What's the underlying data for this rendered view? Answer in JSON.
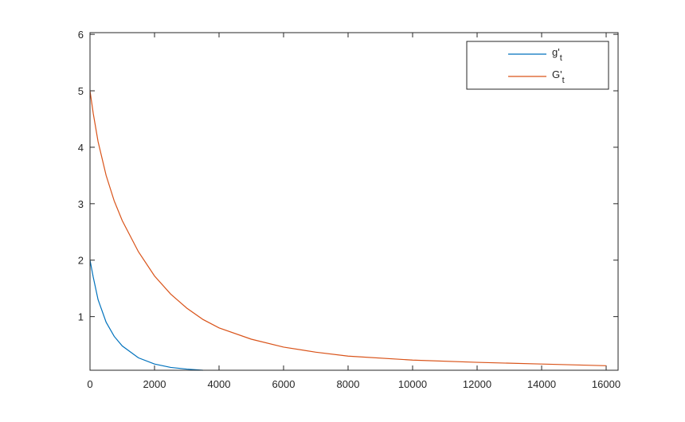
{
  "chart_data": {
    "type": "line",
    "x": [
      0,
      100,
      250,
      500,
      750,
      1000,
      1500,
      2000,
      2500,
      3000,
      3500,
      4000,
      5000,
      6000,
      7000,
      8000,
      10000,
      12000,
      14000,
      16000
    ],
    "series": [
      {
        "name": "g't",
        "color": "#0072bd",
        "values": [
          2.0,
          1.7,
          1.3,
          0.9,
          0.65,
          0.48,
          0.27,
          0.16,
          0.1,
          0.07,
          0.05,
          null,
          null,
          null,
          null,
          null,
          null,
          null,
          null,
          null
        ]
      },
      {
        "name": "G't",
        "color": "#d95319",
        "values": [
          5.0,
          4.6,
          4.1,
          3.5,
          3.05,
          2.7,
          2.15,
          1.72,
          1.4,
          1.15,
          0.95,
          0.8,
          0.6,
          0.46,
          0.37,
          0.3,
          0.23,
          0.19,
          0.16,
          0.13
        ]
      }
    ],
    "xlim": [
      0,
      16370
    ],
    "ylim": [
      0.05,
      6.03
    ],
    "xticks": [
      0,
      2000,
      4000,
      6000,
      8000,
      10000,
      12000,
      14000,
      16000
    ],
    "yticks": [
      1,
      2,
      3,
      4,
      5,
      6
    ],
    "legend": "top-right"
  }
}
